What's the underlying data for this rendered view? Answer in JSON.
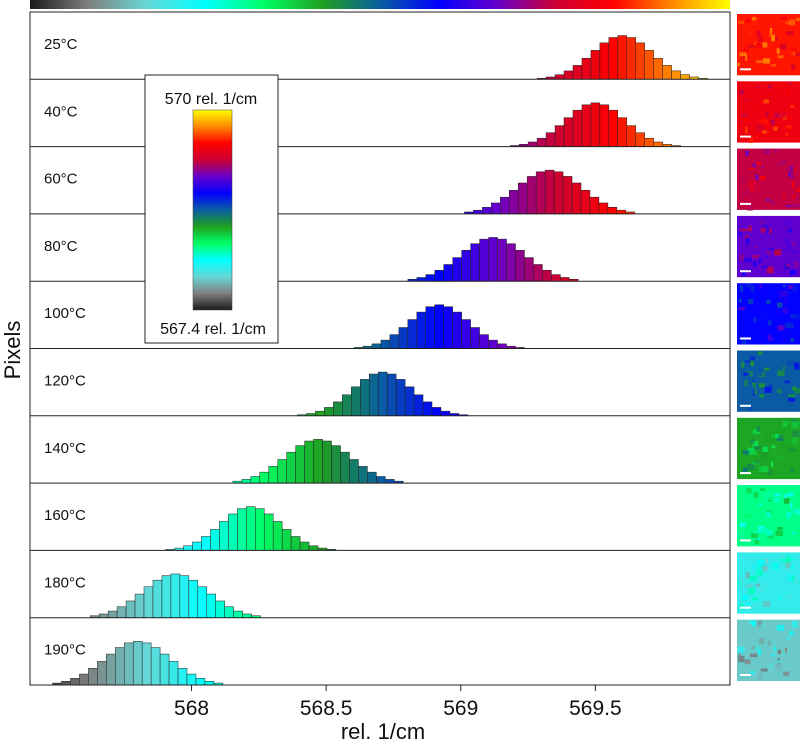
{
  "chart_data": {
    "type": "bar",
    "xlabel": "rel. 1/cm",
    "ylabel": "Pixels",
    "xlim": [
      567.4,
      570.0
    ],
    "xticks": [
      568,
      568.5,
      569,
      569.5
    ],
    "bin_width": 0.0333,
    "colorbar": {
      "max_label": "570 rel. 1/cm",
      "min_label": "567.4 rel. 1/cm",
      "min": 567.4,
      "max": 570.0,
      "stops": [
        "#1a1a1a",
        "#808080",
        "#66d7d7",
        "#00ffff",
        "#00ff66",
        "#1fa01f",
        "#0a5fa0",
        "#0000ff",
        "#6600cc",
        "#cc0033",
        "#ff0000",
        "#ff8800",
        "#ffff00"
      ]
    },
    "panels": [
      {
        "label": "25°C",
        "center": 569.6,
        "sd": 0.11
      },
      {
        "label": "40°C",
        "center": 569.5,
        "sd": 0.11
      },
      {
        "label": "60°C",
        "center": 569.33,
        "sd": 0.12
      },
      {
        "label": "80°C",
        "center": 569.12,
        "sd": 0.12
      },
      {
        "label": "100°C",
        "center": 568.92,
        "sd": 0.11
      },
      {
        "label": "120°C",
        "center": 568.71,
        "sd": 0.11
      },
      {
        "label": "140°C",
        "center": 568.47,
        "sd": 0.12
      },
      {
        "label": "160°C",
        "center": 568.22,
        "sd": 0.11
      },
      {
        "label": "180°C",
        "center": 567.94,
        "sd": 0.12
      },
      {
        "label": "190°C",
        "center": 567.8,
        "sd": 0.12
      }
    ]
  }
}
